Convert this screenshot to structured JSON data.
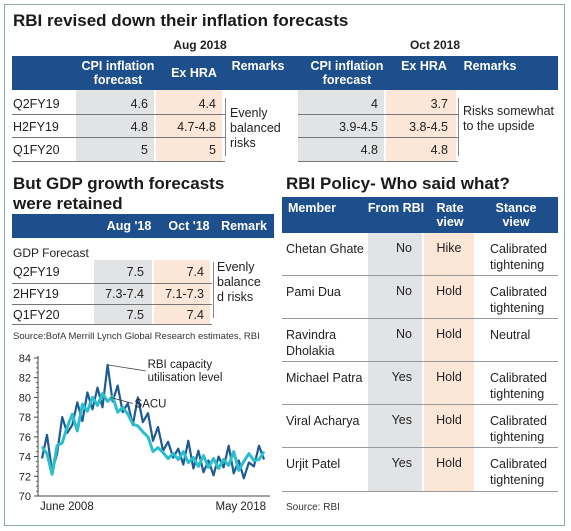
{
  "colors": {
    "header_blue": "#1d4f8c",
    "grey_cell": "#e2e3e5",
    "pink_cell": "#fbe6d8",
    "capacity_line": "#1f5a93",
    "sacu_line": "#2bbfce"
  },
  "infl": {
    "title": "RBI revised down their inflation forecasts",
    "group1": "Aug 2018",
    "group2": "Oct 2018",
    "h_cpi": "CPI inflation forecast",
    "h_hra": "Ex HRA",
    "h_rem": "Remarks",
    "rows": [
      {
        "label": "Q2FY19",
        "aug_cpi": "4.6",
        "aug_hra": "4.4",
        "oct_cpi": "4",
        "oct_hra": "3.7"
      },
      {
        "label": "H2FY19",
        "aug_cpi": "4.8",
        "aug_hra": "4.7-4.8",
        "oct_cpi": "3.9-4.5",
        "oct_hra": "3.8-4.5"
      },
      {
        "label": "Q1FY20",
        "aug_cpi": "5",
        "aug_hra": "5",
        "oct_cpi": "4.8",
        "oct_hra": "4.8"
      }
    ],
    "aug_remark": "Evenly balanced risks",
    "oct_remark": "Risks somewhat to the upside"
  },
  "gdp": {
    "title": "But GDP growth forecasts were retained",
    "h_aug": "Aug '18",
    "h_oct": "Oct '18",
    "h_rem": "Remark",
    "section": "GDP Forecast",
    "rows": [
      {
        "label": "Q2FY19",
        "aug": "7.5",
        "oct": "7.4"
      },
      {
        "label": "2HFY19",
        "aug": "7.3-7.4",
        "oct": "7.1-7.3"
      },
      {
        "label": "Q1FY20",
        "aug": "7.5",
        "oct": "7.4"
      }
    ],
    "remark": "Evenly balance d risks",
    "source": "Source:BofA Merrill Lynch Global Research estimates, RBI"
  },
  "policy": {
    "title": "RBI Policy- Who said what?",
    "h_member": "Member",
    "h_from": "From RBI",
    "h_rate": "Rate view",
    "h_stance": "Stance view",
    "rows": [
      {
        "member": "Chetan Ghate",
        "from": "No",
        "rate": "Hike",
        "stance": "Calibrated tightening"
      },
      {
        "member": "Pami Dua",
        "from": "No",
        "rate": "Hold",
        "stance": "Calibrated tightening"
      },
      {
        "member": "Ravindra Dholakia",
        "from": "No",
        "rate": "Hold",
        "stance": "Neutral"
      },
      {
        "member": "Michael Patra",
        "from": "Yes",
        "rate": "Hold",
        "stance": "Calibrated tightening"
      },
      {
        "member": "Viral Acharya",
        "from": "Yes",
        "rate": "Hold",
        "stance": "Calibrated tightening"
      },
      {
        "member": "Urjit Patel",
        "from": "Yes",
        "rate": "Hold",
        "stance": "Calibrated tightening"
      }
    ],
    "source": "Source:  RBI"
  },
  "chart_data": {
    "type": "line",
    "ylim": [
      70,
      84
    ],
    "yticks": [
      70,
      72,
      74,
      76,
      78,
      80,
      82,
      84
    ],
    "x_start_label": "June 2008",
    "x_end_label": "May 2018",
    "grid": false,
    "series": [
      {
        "name": "RBI capacity utilisation level",
        "values": [
          73.8,
          76.2,
          72.5,
          74.3,
          78.0,
          76.4,
          77.2,
          79.5,
          77.6,
          80.5,
          78.8,
          81.0,
          79.0,
          83.3,
          79.6,
          81.2,
          78.5,
          79.4,
          77.2,
          80.0,
          77.5,
          78.4,
          75.6,
          77.0,
          74.6,
          75.5,
          73.9,
          74.8,
          73.2,
          75.6,
          72.8,
          74.6,
          72.4,
          73.6,
          72.1,
          74.0,
          72.9,
          75.1,
          72.3,
          73.6,
          71.8,
          73.4,
          73.0,
          75.1,
          73.7
        ]
      },
      {
        "name": "SACU",
        "values": [
          75.0,
          74.3,
          72.2,
          75.1,
          75.4,
          77.0,
          78.3,
          76.6,
          79.3,
          78.6,
          80.0,
          79.2,
          80.4,
          79.6,
          80.1,
          78.5,
          79.0,
          78.3,
          77.3,
          77.1,
          76.5,
          76.0,
          74.5,
          74.9,
          74.4,
          73.8,
          74.3,
          73.7,
          74.5,
          73.4,
          73.9,
          73.0,
          74.1,
          72.9,
          73.8,
          72.8,
          73.7,
          73.1,
          74.5,
          72.6,
          73.5,
          74.3,
          73.6,
          73.7,
          74.5
        ]
      }
    ],
    "annotations": [
      "RBI capacity utilisation level",
      "SACU"
    ]
  }
}
